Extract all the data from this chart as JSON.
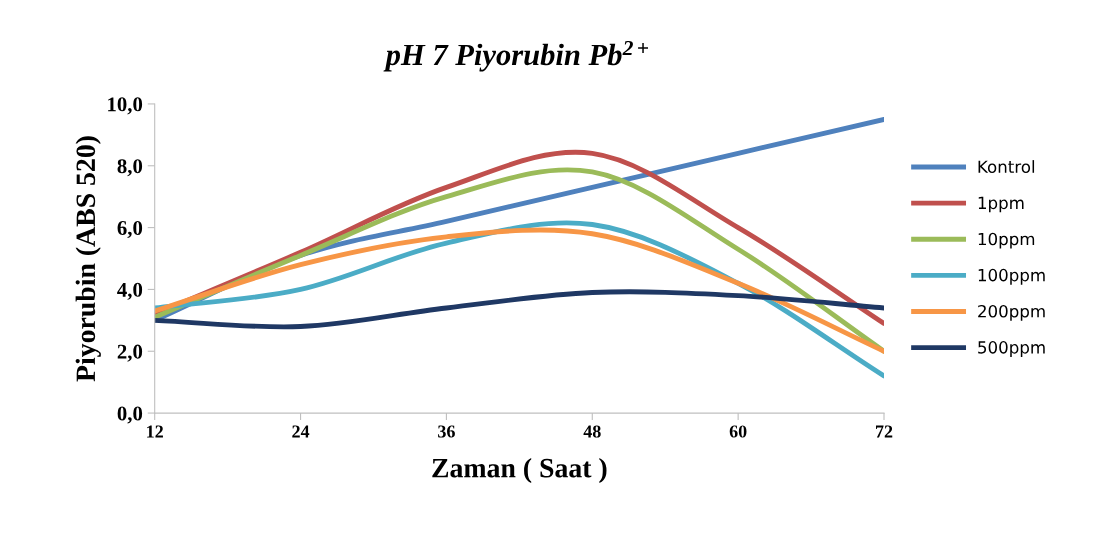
{
  "chart_data": {
    "type": "line",
    "title": "pH 7 Piyorubin Pb$^{2+}$",
    "xlabel": "Zaman ( Saat )",
    "ylabel": "Piyorubin (ABS 520)",
    "categories": [
      "12",
      "24",
      "36",
      "48",
      "60",
      "72"
    ],
    "series": [
      {
        "name": "Kontrol",
        "color": "#4f81bd",
        "values": [
          3.0,
          5.1,
          6.2,
          7.3,
          8.4,
          9.5
        ]
      },
      {
        "name": "1ppm",
        "color": "#c0504d",
        "values": [
          3.2,
          5.2,
          7.3,
          8.4,
          6.0,
          2.9
        ]
      },
      {
        "name": "10ppm",
        "color": "#9bbb59",
        "values": [
          3.1,
          5.1,
          7.0,
          7.8,
          5.3,
          2.0
        ]
      },
      {
        "name": "100ppm",
        "color": "#4bacc6",
        "values": [
          3.4,
          4.0,
          5.5,
          6.1,
          4.2,
          1.2
        ]
      },
      {
        "name": "200ppm",
        "color": "#f79646",
        "values": [
          3.3,
          4.8,
          5.7,
          5.8,
          4.2,
          2.0
        ]
      },
      {
        "name": "500ppm",
        "color": "#1f3864",
        "values": [
          3.0,
          2.8,
          3.4,
          3.9,
          3.8,
          3.4
        ]
      }
    ],
    "ylim": [
      0,
      10
    ],
    "yticks": [
      {
        "value": 0,
        "label": "0,0"
      },
      {
        "value": 2,
        "label": "2,0"
      },
      {
        "value": 4,
        "label": "4,0"
      },
      {
        "value": 6,
        "label": "6,0"
      },
      {
        "value": 8,
        "label": "8,0"
      },
      {
        "value": 10,
        "label": "10,0"
      }
    ],
    "grid": false,
    "legend": "right",
    "marker": "none",
    "line_style": "solid"
  }
}
